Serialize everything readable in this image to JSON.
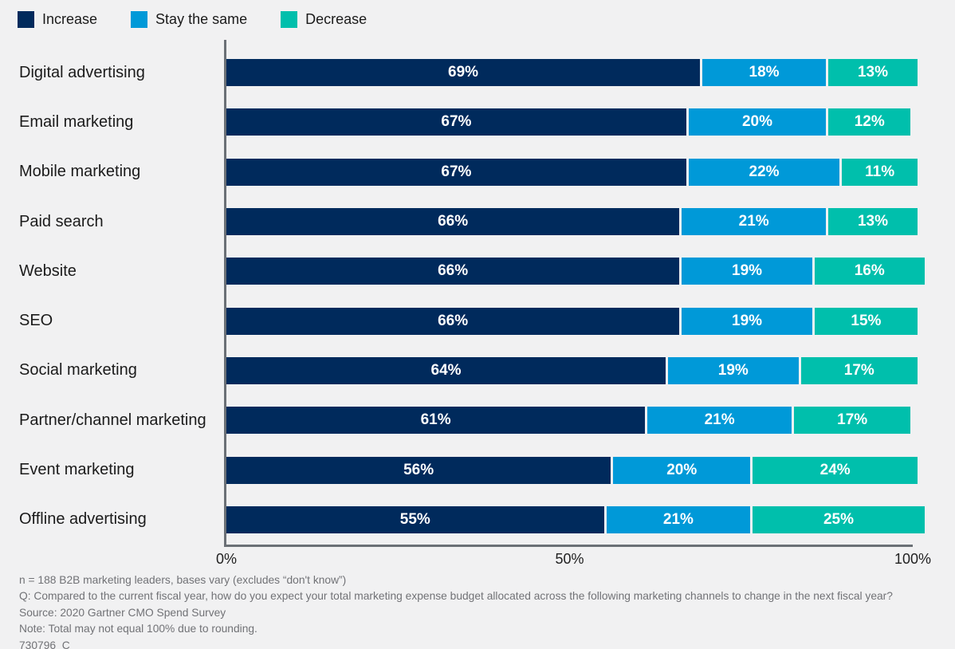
{
  "legend": {
    "items": [
      {
        "label": "Increase",
        "color": "#002A5C"
      },
      {
        "label": "Stay the same",
        "color": "#0099D8"
      },
      {
        "label": "Decrease",
        "color": "#00BFAC"
      }
    ]
  },
  "chart_data": {
    "type": "bar",
    "stacked": true,
    "orientation": "horizontal",
    "categories": [
      "Digital advertising",
      "Email marketing",
      "Mobile marketing",
      "Paid search",
      "Website",
      "SEO",
      "Social marketing",
      "Partner/channel marketing",
      "Event marketing",
      "Offline advertising"
    ],
    "series": [
      {
        "name": "Increase",
        "color": "#002A5C",
        "values": [
          69,
          67,
          67,
          66,
          66,
          66,
          64,
          61,
          56,
          55
        ]
      },
      {
        "name": "Stay the same",
        "color": "#0099D8",
        "values": [
          18,
          20,
          22,
          21,
          19,
          19,
          19,
          21,
          20,
          21
        ]
      },
      {
        "name": "Decrease",
        "color": "#00BFAC",
        "values": [
          13,
          12,
          11,
          13,
          16,
          15,
          17,
          17,
          24,
          25
        ]
      }
    ],
    "value_suffix": "%",
    "xlim": [
      0,
      100
    ],
    "x_ticks": [
      {
        "label": "0%",
        "position": 0
      },
      {
        "label": "50%",
        "position": 50
      },
      {
        "label": "100%",
        "position": 100
      }
    ],
    "grid": false,
    "legend_position": "top",
    "title": "",
    "xlabel": "",
    "ylabel": ""
  },
  "footer": {
    "lines": [
      "n = 188 B2B marketing leaders, bases vary (excludes “don't know”)",
      "Q: Compared to the current fiscal year, how do you expect your total marketing expense budget allocated across the following marketing channels to change in the next fiscal year?",
      "Source: 2020 Gartner CMO Spend Survey",
      "Note: Total may not equal 100% due to rounding.",
      "730796_C"
    ]
  }
}
